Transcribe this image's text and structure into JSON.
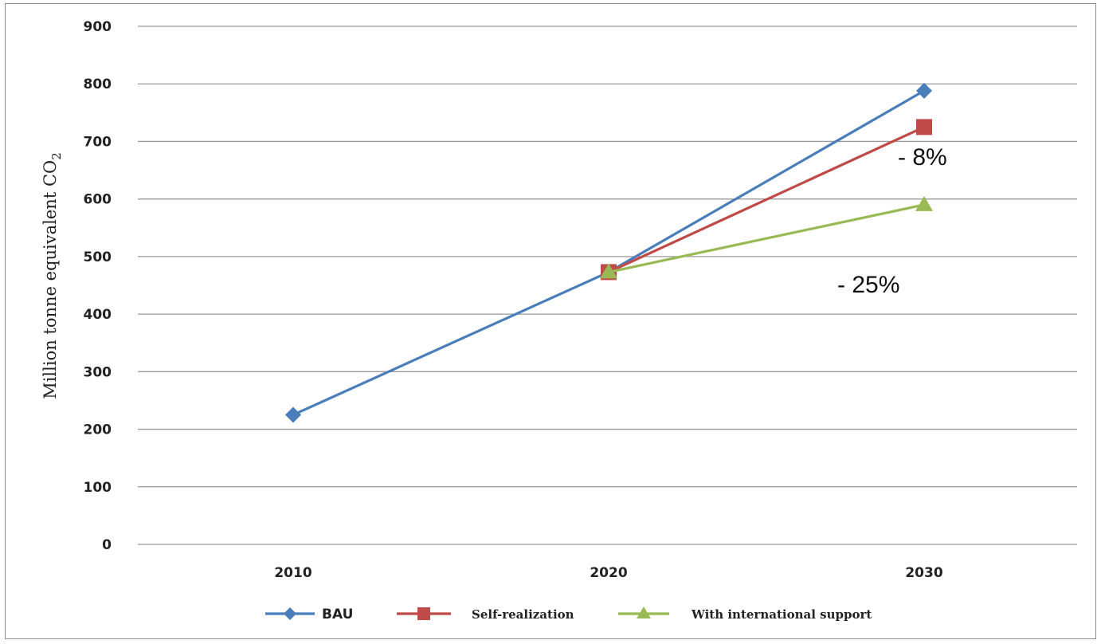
{
  "chart_data": {
    "type": "line",
    "title": "",
    "xlabel": "",
    "ylabel_text": "Million tonne equivalent CO",
    "ylabel_sub": "2",
    "categories": [
      "2010",
      "2020",
      "2030"
    ],
    "ylim": [
      0,
      900
    ],
    "yticks": [
      0,
      100,
      200,
      300,
      400,
      500,
      600,
      700,
      800,
      900
    ],
    "grid": true,
    "legend_position": "bottom",
    "series": [
      {
        "name": "BAU",
        "values": [
          225,
          473,
          788
        ],
        "color": "#4a7ebb",
        "marker": "diamond"
      },
      {
        "name": "Self-realization",
        "values": [
          null,
          473,
          725
        ],
        "color": "#be4b48",
        "marker": "square"
      },
      {
        "name": "With international support",
        "values": [
          null,
          473,
          590
        ],
        "color": "#98b954",
        "marker": "triangle"
      }
    ],
    "annotations": [
      {
        "text": "- 8%"
      },
      {
        "text": "- 25%"
      }
    ]
  }
}
